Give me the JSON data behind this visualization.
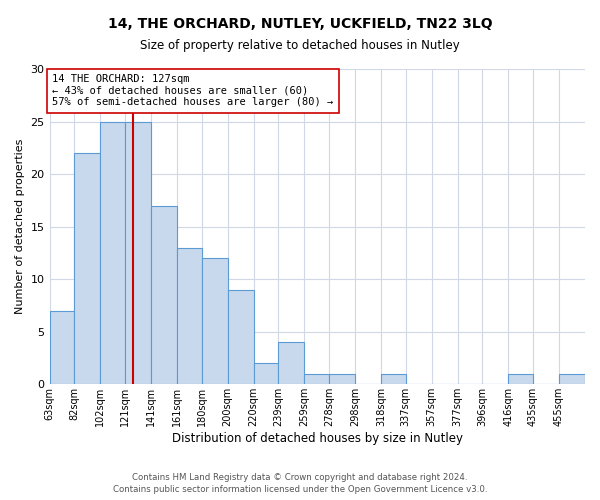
{
  "title": "14, THE ORCHARD, NUTLEY, UCKFIELD, TN22 3LQ",
  "subtitle": "Size of property relative to detached houses in Nutley",
  "xlabel": "Distribution of detached houses by size in Nutley",
  "ylabel": "Number of detached properties",
  "bin_labels": [
    "63sqm",
    "82sqm",
    "102sqm",
    "121sqm",
    "141sqm",
    "161sqm",
    "180sqm",
    "200sqm",
    "220sqm",
    "239sqm",
    "259sqm",
    "278sqm",
    "298sqm",
    "318sqm",
    "337sqm",
    "357sqm",
    "377sqm",
    "396sqm",
    "416sqm",
    "435sqm",
    "455sqm"
  ],
  "bin_edges": [
    63,
    82,
    102,
    121,
    141,
    161,
    180,
    200,
    220,
    239,
    259,
    278,
    298,
    318,
    337,
    357,
    377,
    396,
    416,
    435,
    455
  ],
  "counts": [
    7,
    22,
    25,
    25,
    17,
    13,
    12,
    9,
    2,
    4,
    1,
    1,
    0,
    1,
    0,
    0,
    0,
    0,
    1,
    0,
    1
  ],
  "bar_color": "#c8d9ed",
  "bar_edge_color": "#5b9bd5",
  "property_value": 127,
  "vline_color": "#cc0000",
  "annotation_line1": "14 THE ORCHARD: 127sqm",
  "annotation_line2": "← 43% of detached houses are smaller (60)",
  "annotation_line3": "57% of semi-detached houses are larger (80) →",
  "annotation_box_color": "#ffffff",
  "annotation_box_edge_color": "#cc0000",
  "ylim": [
    0,
    30
  ],
  "yticks": [
    0,
    5,
    10,
    15,
    20,
    25,
    30
  ],
  "footer_line1": "Contains HM Land Registry data © Crown copyright and database right 2024.",
  "footer_line2": "Contains public sector information licensed under the Open Government Licence v3.0.",
  "background_color": "#ffffff",
  "grid_color": "#d0d8e8",
  "title_fontsize": 10,
  "subtitle_fontsize": 8.5
}
